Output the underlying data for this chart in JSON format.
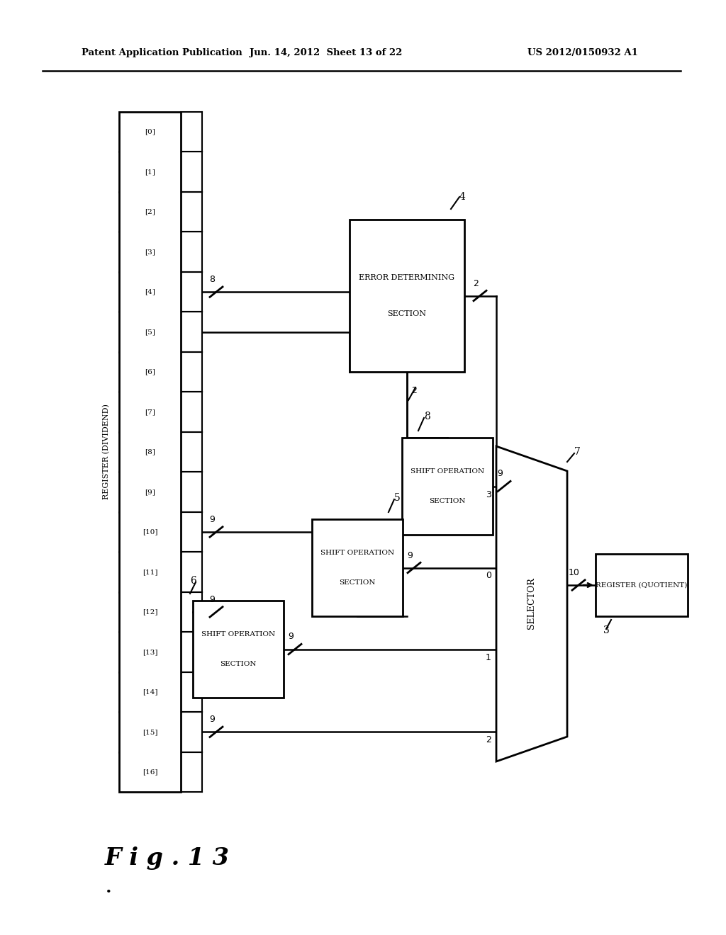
{
  "bg_color": "#ffffff",
  "line_color": "#000000",
  "header_left": "Patent Application Publication",
  "header_mid": "Jun. 14, 2012  Sheet 13 of 22",
  "header_right": "US 2012/0150932 A1",
  "fig_label": "F i g . 1 3",
  "register_title": "REGISTER (DIVIDEND)",
  "register_labels": [
    "[0]",
    "[1]",
    "[2]",
    "[3]",
    "[4]",
    "[5]",
    "[6]",
    "[7]",
    "[8]",
    "[9]",
    "[10]",
    "[11]",
    "[12]",
    "[13]",
    "[14]",
    "[15]",
    "[16]"
  ],
  "eds_lines": [
    "ERROR DETERMINING",
    "SECTION"
  ],
  "sos_lines": [
    "SHIFT OPERATION",
    "SECTION"
  ],
  "sel_label": "SELECTOR",
  "rq_label": "REGISTER (QUOTIENT)"
}
